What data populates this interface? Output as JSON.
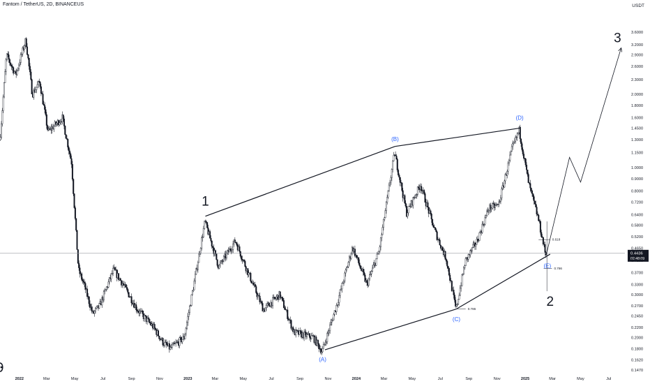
{
  "header": {
    "title": "Fantom / TetherUS, 2D, BINANCEUS",
    "currency": "USDT"
  },
  "chart_data": {
    "type": "candlestick",
    "y_scale": "log",
    "ylim": [
      0.147,
      4.0
    ],
    "x_range": [
      "2021-11-20",
      "2025-08-05"
    ],
    "price_axis_ticks": [
      "3.6000",
      "3.2000",
      "2.9000",
      "2.6000",
      "2.3000",
      "2.0000",
      "1.8000",
      "1.6000",
      "1.4500",
      "1.3000",
      "1.1500",
      "1.0000",
      "0.9000",
      "0.8000",
      "0.7200",
      "0.6400",
      "0.5800",
      "0.5200",
      "0.4650",
      "0.4150",
      "0.3700",
      "0.3300",
      "0.3000",
      "0.2700",
      "0.2450",
      "0.2200",
      "0.2000",
      "0.1800",
      "0.1620",
      "0.1470"
    ],
    "time_axis_ticks": [
      {
        "label": "2022",
        "date": "2022-01-01",
        "bold": true
      },
      {
        "label": "Mar",
        "date": "2022-03-01"
      },
      {
        "label": "May",
        "date": "2022-05-01"
      },
      {
        "label": "Jul",
        "date": "2022-07-01"
      },
      {
        "label": "Sep",
        "date": "2022-09-01"
      },
      {
        "label": "Nov",
        "date": "2022-11-01"
      },
      {
        "label": "2023",
        "date": "2023-01-01",
        "bold": true
      },
      {
        "label": "Mar",
        "date": "2023-03-01"
      },
      {
        "label": "May",
        "date": "2023-05-01"
      },
      {
        "label": "Jul",
        "date": "2023-07-01"
      },
      {
        "label": "Sep",
        "date": "2023-09-01"
      },
      {
        "label": "Nov",
        "date": "2023-11-01"
      },
      {
        "label": "2024",
        "date": "2024-01-01",
        "bold": true
      },
      {
        "label": "Mar",
        "date": "2024-03-01"
      },
      {
        "label": "May",
        "date": "2024-05-01"
      },
      {
        "label": "Jul",
        "date": "2024-07-01"
      },
      {
        "label": "Sep",
        "date": "2024-09-01"
      },
      {
        "label": "Nov",
        "date": "2024-11-01"
      },
      {
        "label": "2025",
        "date": "2025-01-01",
        "bold": true
      },
      {
        "label": "Mar",
        "date": "2025-03-01"
      },
      {
        "label": "May",
        "date": "2025-05-01"
      },
      {
        "label": "Jul",
        "date": "2025-07-01"
      }
    ],
    "current_price": {
      "value": 0.4436,
      "label": "0.4436",
      "countdown": "02:48:09"
    },
    "price_path": [
      {
        "date": "2021-11-21",
        "price": 1.3
      },
      {
        "date": "2021-12-05",
        "price": 2.9
      },
      {
        "date": "2021-12-25",
        "price": 2.4
      },
      {
        "date": "2022-01-16",
        "price": 3.35
      },
      {
        "date": "2022-01-30",
        "price": 2.0
      },
      {
        "date": "2022-02-15",
        "price": 2.25
      },
      {
        "date": "2022-03-05",
        "price": 1.4
      },
      {
        "date": "2022-04-05",
        "price": 1.6
      },
      {
        "date": "2022-04-25",
        "price": 1.05
      },
      {
        "date": "2022-05-10",
        "price": 0.38
      },
      {
        "date": "2022-05-22",
        "price": 0.33
      },
      {
        "date": "2022-06-10",
        "price": 0.25
      },
      {
        "date": "2022-06-25",
        "price": 0.27
      },
      {
        "date": "2022-07-25",
        "price": 0.38
      },
      {
        "date": "2022-08-15",
        "price": 0.33
      },
      {
        "date": "2022-09-15",
        "price": 0.26
      },
      {
        "date": "2022-10-20",
        "price": 0.22
      },
      {
        "date": "2022-11-10",
        "price": 0.19
      },
      {
        "date": "2022-11-25",
        "price": 0.18
      },
      {
        "date": "2022-12-25",
        "price": 0.2
      },
      {
        "date": "2023-01-15",
        "price": 0.33
      },
      {
        "date": "2023-02-08",
        "price": 0.6
      },
      {
        "date": "2023-03-10",
        "price": 0.39
      },
      {
        "date": "2023-04-15",
        "price": 0.5
      },
      {
        "date": "2023-05-10",
        "price": 0.38
      },
      {
        "date": "2023-06-15",
        "price": 0.26
      },
      {
        "date": "2023-07-20",
        "price": 0.3
      },
      {
        "date": "2023-08-20",
        "price": 0.21
      },
      {
        "date": "2023-10-01",
        "price": 0.2
      },
      {
        "date": "2023-10-20",
        "price": 0.175
      },
      {
        "date": "2023-11-20",
        "price": 0.27
      },
      {
        "date": "2023-12-25",
        "price": 0.47
      },
      {
        "date": "2024-01-25",
        "price": 0.33
      },
      {
        "date": "2024-02-20",
        "price": 0.45
      },
      {
        "date": "2024-03-25",
        "price": 1.15
      },
      {
        "date": "2024-04-20",
        "price": 0.65
      },
      {
        "date": "2024-05-20",
        "price": 0.85
      },
      {
        "date": "2024-06-20",
        "price": 0.55
      },
      {
        "date": "2024-07-15",
        "price": 0.42
      },
      {
        "date": "2024-08-05",
        "price": 0.26
      },
      {
        "date": "2024-08-25",
        "price": 0.41
      },
      {
        "date": "2024-09-20",
        "price": 0.5
      },
      {
        "date": "2024-10-15",
        "price": 0.68
      },
      {
        "date": "2024-11-05",
        "price": 0.7
      },
      {
        "date": "2024-12-05",
        "price": 1.2
      },
      {
        "date": "2024-12-20",
        "price": 1.42
      },
      {
        "date": "2025-01-10",
        "price": 0.85
      },
      {
        "date": "2025-01-30",
        "price": 0.62
      },
      {
        "date": "2025-02-15",
        "price": 0.44
      }
    ],
    "annotations": {
      "wave_labels": [
        {
          "text": "1",
          "date": "2023-02-08",
          "price": 0.73
        },
        {
          "text": "2",
          "date": "2025-02-24",
          "price": 0.283
        },
        {
          "text": "3",
          "date": "2025-07-20",
          "price": 3.42
        }
      ],
      "triangle_labels": [
        {
          "text": "(A)",
          "date": "2023-10-20",
          "price": 0.163
        },
        {
          "text": "(B)",
          "date": "2024-03-25",
          "price": 1.31
        },
        {
          "text": "(C)",
          "date": "2024-08-05",
          "price": 0.238
        },
        {
          "text": "(D)",
          "date": "2024-12-20",
          "price": 1.6
        },
        {
          "text": "(E)",
          "date": "2025-02-18",
          "price": 0.395
        }
      ],
      "trendlines": [
        {
          "from": {
            "date": "2023-02-08",
            "price": 0.63
          },
          "to": {
            "date": "2024-03-25",
            "price": 1.22
          }
        },
        {
          "from": {
            "date": "2024-03-25",
            "price": 1.22
          },
          "to": {
            "date": "2024-12-20",
            "price": 1.45
          }
        },
        {
          "from": {
            "date": "2023-10-25",
            "price": 0.178
          },
          "to": {
            "date": "2024-08-05",
            "price": 0.262
          }
        },
        {
          "from": {
            "date": "2024-08-05",
            "price": 0.262
          },
          "to": {
            "date": "2025-02-24",
            "price": 0.44
          }
        }
      ],
      "fib_levels": [
        {
          "label": "0.618",
          "price": 0.505,
          "from": "2025-01-30",
          "to": "2025-02-24"
        },
        {
          "label": "0.786",
          "price": 0.385,
          "from": "2025-02-10",
          "to": "2025-02-28"
        },
        {
          "label": "0.786",
          "price": 0.262,
          "from": "2024-08-05",
          "to": "2024-08-25"
        }
      ],
      "projection_path": [
        {
          "date": "2025-02-16",
          "price": 0.44
        },
        {
          "date": "2025-04-07",
          "price": 1.1
        },
        {
          "date": "2025-05-01",
          "price": 0.87
        },
        {
          "date": "2025-07-28",
          "price": 3.1
        }
      ]
    },
    "colors": {
      "candles": "#131722",
      "trendline": "#131722",
      "wave_label": "#131722",
      "triangle_label": "#2962ff",
      "grid_line": "#9598a1",
      "price_tag_bg": "#131722",
      "price_tag_text": "#ffffff"
    }
  }
}
